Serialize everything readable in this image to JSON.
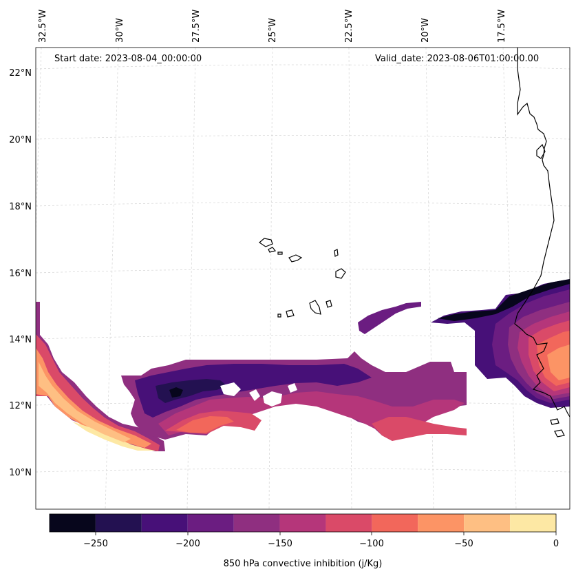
{
  "header": {
    "start_date": "Start date: 2023-08-04_00:00:00",
    "valid_date": "Valid_date: 2023-08-06T01:00:00.00"
  },
  "map": {
    "longitude_labels": [
      "32.5°W",
      "30°W",
      "27.5°W",
      "25°W",
      "22.5°W",
      "20°W",
      "17.5°W"
    ],
    "latitude_labels": [
      "22°N",
      "20°N",
      "18°N",
      "16°N",
      "14°N",
      "12°N",
      "10°N"
    ],
    "gridlines": true,
    "coastline_color": "#000000"
  },
  "colorbar": {
    "label": "850 hPa convective inhibition (j/Kg)",
    "tick_labels": [
      "−250",
      "−200",
      "−150",
      "−100",
      "−50",
      "0"
    ],
    "levels": [
      -275,
      -250,
      -225,
      -200,
      -175,
      -150,
      -125,
      -100,
      -75,
      -50,
      -25,
      0
    ],
    "colors": [
      "#07061c",
      "#231151",
      "#471078",
      "#6b1d81",
      "#8f2f80",
      "#b5367a",
      "#da4a68",
      "#f2675b",
      "#fc9465",
      "#febf83",
      "#fde8a4"
    ],
    "colormap": "magma"
  }
}
